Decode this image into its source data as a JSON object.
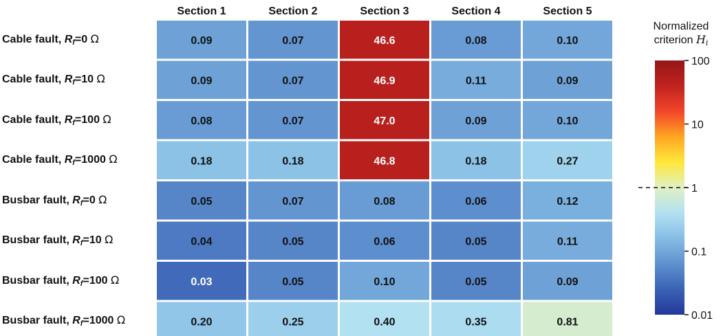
{
  "chart_data": {
    "type": "heatmap",
    "columns": [
      "Section 1",
      "Section 2",
      "Section 3",
      "Section 4",
      "Section 5"
    ],
    "rows": [
      {
        "fault": "Cable fault",
        "rf_value": "0",
        "values": [
          "0.09",
          "0.07",
          "46.6",
          "0.08",
          "0.10"
        ]
      },
      {
        "fault": "Cable fault",
        "rf_value": "10",
        "values": [
          "0.09",
          "0.07",
          "46.9",
          "0.11",
          "0.09"
        ]
      },
      {
        "fault": "Cable fault",
        "rf_value": "100",
        "values": [
          "0.08",
          "0.07",
          "47.0",
          "0.09",
          "0.10"
        ]
      },
      {
        "fault": "Cable fault",
        "rf_value": "1000",
        "values": [
          "0.18",
          "0.18",
          "46.8",
          "0.18",
          "0.27"
        ]
      },
      {
        "fault": "Busbar fault",
        "rf_value": "0",
        "values": [
          "0.05",
          "0.07",
          "0.08",
          "0.06",
          "0.12"
        ]
      },
      {
        "fault": "Busbar fault",
        "rf_value": "10",
        "values": [
          "0.04",
          "0.05",
          "0.06",
          "0.05",
          "0.11"
        ]
      },
      {
        "fault": "Busbar fault",
        "rf_value": "100",
        "values": [
          "0.03",
          "0.05",
          "0.10",
          "0.05",
          "0.09"
        ]
      },
      {
        "fault": "Busbar fault",
        "rf_value": "1000",
        "values": [
          "0.20",
          "0.25",
          "0.40",
          "0.35",
          "0.81"
        ]
      }
    ],
    "row_label_parts": {
      "r": "R",
      "sub": "f",
      "eq": "=",
      "unit": "Ω"
    },
    "colorbar": {
      "title_line1": "Normalized",
      "title_line2": "criterion",
      "title_symbol": "H",
      "title_subscript": "i",
      "scale": "log",
      "range": [
        0.01,
        100
      ],
      "ticks": [
        {
          "value": 100,
          "label": "100"
        },
        {
          "value": 10,
          "label": "10"
        },
        {
          "value": 1,
          "label": "1"
        },
        {
          "value": 0.1,
          "label": "0.1"
        },
        {
          "value": 0.01,
          "label": "0.01"
        }
      ],
      "threshold": 1,
      "colormap": [
        "#23389a",
        "#3a62b5",
        "#5f91cf",
        "#86bde4",
        "#b2e1f2",
        "#e0f0c3",
        "#ffe73a",
        "#ffa523",
        "#f2452a",
        "#c0221f",
        "#941717"
      ]
    }
  }
}
